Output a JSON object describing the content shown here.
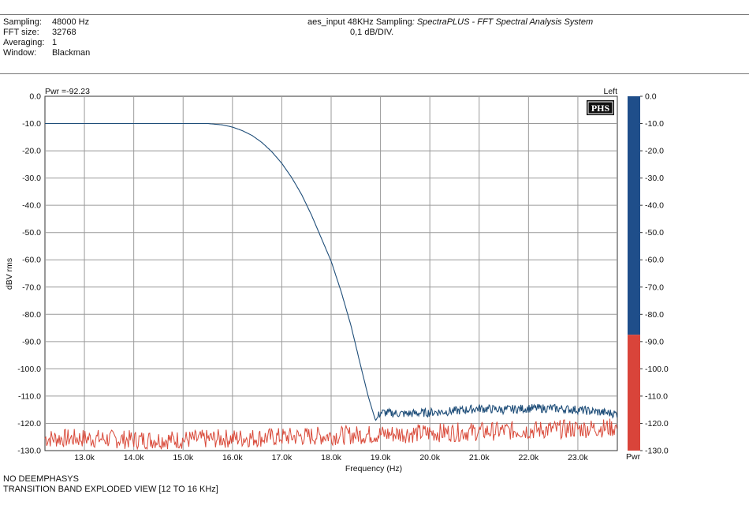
{
  "header": {
    "rows": [
      {
        "label": "Sampling:",
        "value": "48000 Hz"
      },
      {
        "label": "FFT size:",
        "value": "32768"
      },
      {
        "label": "Averaging:",
        "value": "1"
      },
      {
        "label": "Window:",
        "value": "Blackman"
      }
    ],
    "title_plain": "aes_input 48KHz Sampling",
    "title_italic": ": SpectraPLUS - FFT Spectral Analysis System",
    "subtitle": "0,1 dB/DIV."
  },
  "plot": {
    "pwr_readout": "Pwr =-92.23",
    "channel": "Left",
    "logo_text": "PHS",
    "meter_label": "Pwr"
  },
  "footer": {
    "line1": "NO DEEMPHASYS",
    "line2": "TRANSITION BAND EXPLODED VIEW [12 TO 16 KHz]"
  },
  "chart_data": {
    "type": "line",
    "xlabel": "Frequency (Hz)",
    "ylabel": "dBV rms",
    "xlim": [
      12200,
      23800
    ],
    "ylim": [
      -130,
      0
    ],
    "x_ticks": [
      13000,
      14000,
      15000,
      16000,
      17000,
      18000,
      19000,
      20000,
      21000,
      22000,
      23000
    ],
    "x_tick_labels": [
      "13.0k",
      "14.0k",
      "15.0k",
      "16.0k",
      "17.0k",
      "18.0k",
      "19.0k",
      "20.0k",
      "21.0k",
      "22.0k",
      "23.0k"
    ],
    "y_ticks": [
      0,
      -10,
      -20,
      -30,
      -40,
      -50,
      -60,
      -70,
      -80,
      -90,
      -100,
      -110,
      -120,
      -130
    ],
    "y_tick_labels": [
      "0.0",
      "-10.0",
      "-20.0",
      "-30.0",
      "-40.0",
      "-50.0",
      "-60.0",
      "-70.0",
      "-80.0",
      "-90.0",
      "-100.0",
      "-110.0",
      "-120.0",
      "-130.0"
    ],
    "grid": true,
    "series": [
      {
        "color": "#1f4e79",
        "x": [
          12200,
          15500,
          15800,
          16000,
          16200,
          16400,
          16600,
          16800,
          17000,
          17200,
          17400,
          17600,
          17800,
          18000,
          18200,
          18400,
          18600,
          18750,
          18900,
          19000,
          19500,
          20000,
          20500,
          21000,
          21500,
          22000,
          22500,
          23000,
          23500,
          23800
        ],
        "y": [
          -10,
          -10,
          -10.5,
          -11.3,
          -12.6,
          -14.4,
          -17,
          -20.4,
          -24.6,
          -29.8,
          -36,
          -43.5,
          -52,
          -60.5,
          -71.5,
          -84,
          -99,
          -110,
          -119,
          -116,
          -116.5,
          -116,
          -115.5,
          -114.5,
          -115,
          -114.5,
          -114.5,
          -115,
          -116,
          -116.5
        ]
      },
      {
        "color": "#d94a3a",
        "x": [
          12200,
          13000,
          14000,
          15000,
          16000,
          17000,
          18000,
          19000,
          20000,
          21000,
          22000,
          23000,
          23800
        ],
        "y": [
          -125.5,
          -125.5,
          -126,
          -126,
          -125.5,
          -125,
          -124.5,
          -124,
          -123.5,
          -123,
          -122.5,
          -122,
          -121.5
        ]
      }
    ],
    "meter": {
      "scale": [
        0,
        -130
      ],
      "blue_top": 0,
      "red_top": -87.5,
      "blue_color": "#1f4e8a",
      "red_color": "#d9443a"
    }
  }
}
